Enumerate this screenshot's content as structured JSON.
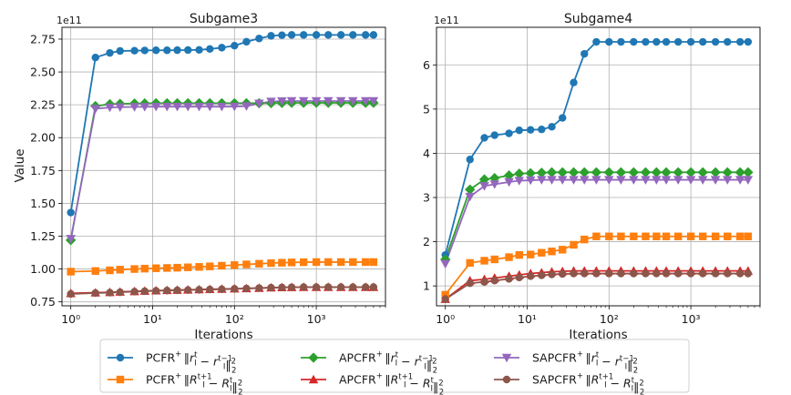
{
  "figure": {
    "legend": [
      {
        "prefix": "PCFR",
        "formula": "‖r_I^t − r_I^{t−1}‖_2^2",
        "color": "#1f77b4",
        "marker": "circle"
      },
      {
        "prefix": "PCFR",
        "formula": "‖R_I^{t+1} − R_I^t‖_2^2",
        "color": "#ff7f0e",
        "marker": "square"
      },
      {
        "prefix": "APCFR",
        "formula": "‖r_I^t − r_I^{t−1}‖_2^2",
        "color": "#2ca02c",
        "marker": "diamond"
      },
      {
        "prefix": "APCFR",
        "formula": "‖R_I^{t+1} − R_I^t‖_2^2",
        "color": "#d62728",
        "marker": "triangle-up"
      },
      {
        "prefix": "SAPCFR",
        "formula": "‖r_I^t − r_I^{t−1}‖_2^2",
        "color": "#9467bd",
        "marker": "triangle-down"
      },
      {
        "prefix": "SAPCFR",
        "formula": "‖R_I^{t+1} − R_I^t‖_2^2",
        "color": "#8c564b",
        "marker": "circle"
      }
    ]
  },
  "chart_data": [
    {
      "type": "line",
      "title": "Subgame3",
      "xlabel": "Iterations",
      "ylabel": "Value",
      "xscale": "log",
      "xlim": [
        0.78,
        7000
      ],
      "ylim": [
        0.72,
        2.84
      ],
      "y_scale_label": "1e11",
      "yticks": [
        0.75,
        1.0,
        1.25,
        1.5,
        1.75,
        2.0,
        2.25,
        2.5,
        2.75
      ],
      "ytick_labels": [
        "0.75",
        "1.00",
        "1.25",
        "1.50",
        "1.75",
        "2.00",
        "2.25",
        "2.50",
        "2.75"
      ],
      "xticks": [
        1,
        10,
        100,
        1000
      ],
      "xtick_labels": [
        "10⁰",
        "10¹",
        "10²",
        "10³"
      ],
      "grid": true,
      "x": [
        1,
        2,
        3,
        4,
        6,
        8,
        11,
        15,
        20,
        27,
        37,
        50,
        70,
        100,
        140,
        200,
        280,
        380,
        500,
        700,
        1000,
        1400,
        2000,
        2800,
        4000,
        5000
      ],
      "series": [
        {
          "name": "PCFR ‖r_I^t − r_I^{t−1}‖_2^2",
          "values": [
            1.43,
            2.61,
            2.645,
            2.66,
            2.662,
            2.664,
            2.665,
            2.665,
            2.666,
            2.667,
            2.668,
            2.675,
            2.685,
            2.7,
            2.73,
            2.755,
            2.775,
            2.78,
            2.782,
            2.782,
            2.782,
            2.782,
            2.782,
            2.782,
            2.782,
            2.782
          ]
        },
        {
          "name": "PCFR ‖R_I^{t+1} − R_I^t‖_2^2",
          "values": [
            0.98,
            0.985,
            0.99,
            0.995,
            1.0,
            1.003,
            1.006,
            1.008,
            1.01,
            1.013,
            1.016,
            1.02,
            1.025,
            1.03,
            1.035,
            1.04,
            1.045,
            1.048,
            1.05,
            1.052,
            1.053,
            1.053,
            1.053,
            1.053,
            1.053,
            1.053
          ]
        },
        {
          "name": "APCFR ‖r_I^t − r_I^{t−1}‖_2^2",
          "values": [
            1.22,
            2.24,
            2.255,
            2.258,
            2.26,
            2.261,
            2.262,
            2.262,
            2.262,
            2.262,
            2.262,
            2.262,
            2.262,
            2.262,
            2.262,
            2.262,
            2.263,
            2.264,
            2.265,
            2.265,
            2.265,
            2.265,
            2.265,
            2.265,
            2.265,
            2.265
          ]
        },
        {
          "name": "APCFR ‖R_I^{t+1} − R_I^t‖_2^2",
          "values": [
            0.815,
            0.82,
            0.823,
            0.826,
            0.83,
            0.833,
            0.836,
            0.838,
            0.84,
            0.842,
            0.844,
            0.846,
            0.848,
            0.85,
            0.852,
            0.855,
            0.858,
            0.86,
            0.861,
            0.862,
            0.862,
            0.862,
            0.862,
            0.862,
            0.862,
            0.862
          ]
        },
        {
          "name": "SAPCFR ‖r_I^t − r_I^{t−1}‖_2^2",
          "values": [
            1.23,
            2.22,
            2.23,
            2.232,
            2.234,
            2.235,
            2.236,
            2.236,
            2.236,
            2.236,
            2.236,
            2.236,
            2.236,
            2.237,
            2.24,
            2.26,
            2.275,
            2.278,
            2.279,
            2.279,
            2.279,
            2.279,
            2.279,
            2.279,
            2.279,
            2.279
          ]
        },
        {
          "name": "SAPCFR ‖R_I^{t+1} − R_I^t‖_2^2",
          "values": [
            0.81,
            0.817,
            0.82,
            0.823,
            0.828,
            0.831,
            0.834,
            0.836,
            0.838,
            0.84,
            0.842,
            0.844,
            0.846,
            0.849,
            0.852,
            0.855,
            0.858,
            0.86,
            0.861,
            0.862,
            0.862,
            0.862,
            0.862,
            0.862,
            0.862,
            0.862
          ]
        }
      ]
    },
    {
      "type": "line",
      "title": "Subgame4",
      "xlabel": "Iterations",
      "ylabel": "",
      "xscale": "log",
      "xlim": [
        0.78,
        7000
      ],
      "ylim": [
        0.55,
        6.85
      ],
      "y_scale_label": "1e11",
      "yticks": [
        1,
        2,
        3,
        4,
        5,
        6
      ],
      "ytick_labels": [
        "1",
        "2",
        "3",
        "4",
        "5",
        "6"
      ],
      "xticks": [
        1,
        10,
        100,
        1000
      ],
      "xtick_labels": [
        "10⁰",
        "10¹",
        "10²",
        "10³"
      ],
      "grid": true,
      "x": [
        1,
        2,
        3,
        4,
        6,
        8,
        11,
        15,
        20,
        27,
        37,
        50,
        70,
        100,
        140,
        200,
        280,
        380,
        500,
        700,
        1000,
        1400,
        2000,
        2800,
        4000,
        5000
      ],
      "series": [
        {
          "name": "PCFR ‖r_I^t − r_I^{t−1}‖_2^2",
          "values": [
            1.7,
            3.86,
            4.35,
            4.41,
            4.45,
            4.52,
            4.53,
            4.54,
            4.6,
            4.8,
            5.6,
            6.25,
            6.52,
            6.52,
            6.52,
            6.52,
            6.52,
            6.52,
            6.52,
            6.52,
            6.52,
            6.52,
            6.52,
            6.52,
            6.52,
            6.52
          ]
        },
        {
          "name": "PCFR ‖R_I^{t+1} − R_I^t‖_2^2",
          "values": [
            0.8,
            1.52,
            1.57,
            1.6,
            1.65,
            1.7,
            1.71,
            1.75,
            1.78,
            1.82,
            1.93,
            2.05,
            2.12,
            2.12,
            2.12,
            2.12,
            2.12,
            2.12,
            2.12,
            2.12,
            2.12,
            2.12,
            2.12,
            2.12,
            2.12,
            2.12
          ]
        },
        {
          "name": "APCFR ‖r_I^t − r_I^{t−1}‖_2^2",
          "values": [
            1.6,
            3.18,
            3.41,
            3.44,
            3.5,
            3.54,
            3.55,
            3.56,
            3.57,
            3.57,
            3.57,
            3.57,
            3.57,
            3.57,
            3.57,
            3.57,
            3.57,
            3.57,
            3.57,
            3.57,
            3.57,
            3.57,
            3.57,
            3.57,
            3.57,
            3.57
          ]
        },
        {
          "name": "APCFR ‖R_I^{t+1} − R_I^t‖_2^2",
          "values": [
            0.7,
            1.12,
            1.15,
            1.18,
            1.22,
            1.25,
            1.28,
            1.3,
            1.32,
            1.33,
            1.34,
            1.34,
            1.34,
            1.34,
            1.34,
            1.34,
            1.34,
            1.34,
            1.34,
            1.34,
            1.34,
            1.34,
            1.34,
            1.34,
            1.34,
            1.34
          ]
        },
        {
          "name": "SAPCFR ‖r_I^t − r_I^{t−1}‖_2^2",
          "values": [
            1.5,
            3.02,
            3.26,
            3.3,
            3.35,
            3.38,
            3.39,
            3.4,
            3.4,
            3.4,
            3.4,
            3.4,
            3.4,
            3.4,
            3.4,
            3.4,
            3.4,
            3.4,
            3.4,
            3.4,
            3.4,
            3.4,
            3.4,
            3.4,
            3.4,
            3.4
          ]
        },
        {
          "name": "SAPCFR ‖R_I^{t+1} − R_I^t‖_2^2",
          "values": [
            0.7,
            1.06,
            1.09,
            1.12,
            1.16,
            1.19,
            1.22,
            1.24,
            1.26,
            1.27,
            1.28,
            1.28,
            1.28,
            1.28,
            1.28,
            1.28,
            1.28,
            1.28,
            1.28,
            1.28,
            1.28,
            1.28,
            1.28,
            1.28,
            1.28,
            1.28
          ]
        }
      ]
    }
  ]
}
